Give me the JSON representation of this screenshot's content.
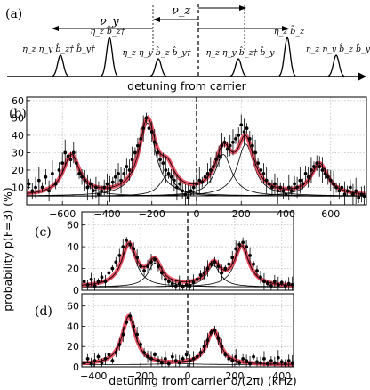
{
  "panel_labels": {
    "a": "(a)",
    "b": "(b)",
    "c": "(c)",
    "d": "(d)"
  },
  "schematic": {
    "axis_label": "detuning from carrier",
    "nu_y": "ν_y",
    "nu_z": "ν_z",
    "peaks": [
      {
        "label": "η_z η_y b̂_z† b̂_y†",
        "pos": -775
      },
      {
        "label": "η_z b̂_z†",
        "pos": -500
      },
      {
        "label": "η_z η_y b̂_z b̂_y†",
        "pos": -225
      },
      {
        "label": "η_z η_y b̂_z† b̂_y",
        "pos": 225
      },
      {
        "label": "η_z b̂_z",
        "pos": 500
      },
      {
        "label": "η_z η_y b̂_z b̂_y",
        "pos": 775
      }
    ],
    "colors": {
      "fit": "#e8384f",
      "ink": "#000000"
    }
  },
  "chart_data": [
    {
      "id": "b",
      "type": "scatter",
      "xlim": [
        -760,
        760
      ],
      "ylim": [
        0,
        62
      ],
      "xticks": [
        -600,
        -400,
        -200,
        0,
        200,
        400,
        600
      ],
      "yticks": [
        10,
        20,
        30,
        40,
        50,
        60
      ],
      "baseline": 5,
      "peaks": [
        {
          "center": -560,
          "height": 23,
          "width": 45
        },
        {
          "center": -220,
          "height": 42,
          "width": 45
        },
        {
          "center": -130,
          "height": 12,
          "width": 40
        },
        {
          "center": 120,
          "height": 24,
          "width": 45
        },
        {
          "center": 220,
          "height": 30,
          "width": 45
        },
        {
          "center": 550,
          "height": 18,
          "width": 45
        }
      ],
      "points": [
        [
          -750,
          12
        ],
        [
          -735,
          8
        ],
        [
          -720,
          10
        ],
        [
          -705,
          14
        ],
        [
          -690,
          10
        ],
        [
          -675,
          16
        ],
        [
          -660,
          8
        ],
        [
          -645,
          18
        ],
        [
          -630,
          12
        ],
        [
          -615,
          20
        ],
        [
          -600,
          24
        ],
        [
          -588,
          30
        ],
        [
          -575,
          28
        ],
        [
          -563,
          26
        ],
        [
          -550,
          30
        ],
        [
          -538,
          24
        ],
        [
          -525,
          18
        ],
        [
          -513,
          16
        ],
        [
          -500,
          14
        ],
        [
          -488,
          10
        ],
        [
          -475,
          12
        ],
        [
          -463,
          8
        ],
        [
          -450,
          10
        ],
        [
          -438,
          6
        ],
        [
          -425,
          8
        ],
        [
          -413,
          10
        ],
        [
          -400,
          12
        ],
        [
          -388,
          9
        ],
        [
          -375,
          13
        ],
        [
          -363,
          16
        ],
        [
          -350,
          18
        ],
        [
          -338,
          14
        ],
        [
          -325,
          18
        ],
        [
          -313,
          22
        ],
        [
          -300,
          20
        ],
        [
          -288,
          26
        ],
        [
          -275,
          30
        ],
        [
          -263,
          34
        ],
        [
          -250,
          38
        ],
        [
          -238,
          44
        ],
        [
          -225,
          50
        ],
        [
          -213,
          44
        ],
        [
          -200,
          42
        ],
        [
          -188,
          36
        ],
        [
          -175,
          30
        ],
        [
          -163,
          26
        ],
        [
          -150,
          24
        ],
        [
          -138,
          20
        ],
        [
          -125,
          18
        ],
        [
          -113,
          16
        ],
        [
          -100,
          14
        ],
        [
          -88,
          10
        ],
        [
          -75,
          12
        ],
        [
          -63,
          8
        ],
        [
          -50,
          6
        ],
        [
          -38,
          4
        ],
        [
          -25,
          8
        ],
        [
          -13,
          10
        ],
        [
          0,
          12
        ],
        [
          13,
          14
        ],
        [
          25,
          13
        ],
        [
          38,
          16
        ],
        [
          50,
          18
        ],
        [
          63,
          20
        ],
        [
          75,
          22
        ],
        [
          88,
          26
        ],
        [
          100,
          28
        ],
        [
          113,
          34
        ],
        [
          125,
          36
        ],
        [
          138,
          32
        ],
        [
          150,
          34
        ],
        [
          163,
          36
        ],
        [
          175,
          38
        ],
        [
          188,
          40
        ],
        [
          200,
          46
        ],
        [
          213,
          42
        ],
        [
          225,
          44
        ],
        [
          238,
          38
        ],
        [
          250,
          34
        ],
        [
          263,
          30
        ],
        [
          275,
          24
        ],
        [
          288,
          20
        ],
        [
          300,
          18
        ],
        [
          313,
          14
        ],
        [
          325,
          12
        ],
        [
          338,
          10
        ],
        [
          350,
          12
        ],
        [
          363,
          8
        ],
        [
          375,
          10
        ],
        [
          388,
          8
        ],
        [
          400,
          6
        ],
        [
          413,
          10
        ],
        [
          425,
          8
        ],
        [
          438,
          12
        ],
        [
          450,
          10
        ],
        [
          463,
          14
        ],
        [
          475,
          12
        ],
        [
          488,
          18
        ],
        [
          500,
          16
        ],
        [
          513,
          20
        ],
        [
          525,
          22
        ],
        [
          538,
          24
        ],
        [
          550,
          22
        ],
        [
          563,
          20
        ],
        [
          575,
          18
        ],
        [
          588,
          16
        ],
        [
          600,
          14
        ],
        [
          613,
          12
        ],
        [
          625,
          10
        ],
        [
          638,
          8
        ],
        [
          650,
          10
        ],
        [
          663,
          6
        ],
        [
          675,
          8
        ],
        [
          688,
          10
        ],
        [
          700,
          6
        ],
        [
          713,
          8
        ],
        [
          725,
          4
        ],
        [
          738,
          6
        ],
        [
          750,
          5
        ]
      ]
    },
    {
      "id": "c",
      "type": "scatter",
      "xlim": [
        -450,
        450
      ],
      "ylim": [
        0,
        72
      ],
      "xticks": [],
      "yticks": [
        0,
        20,
        40,
        60
      ],
      "baseline": 3,
      "peaks": [
        {
          "center": -250,
          "height": 38,
          "width": 38
        },
        {
          "center": -140,
          "height": 22,
          "width": 35
        },
        {
          "center": 110,
          "height": 20,
          "width": 35
        },
        {
          "center": 230,
          "height": 36,
          "width": 38
        }
      ],
      "points": [
        [
          -440,
          8
        ],
        [
          -425,
          5
        ],
        [
          -410,
          10
        ],
        [
          -395,
          4
        ],
        [
          -380,
          8
        ],
        [
          -365,
          12
        ],
        [
          -350,
          8
        ],
        [
          -335,
          16
        ],
        [
          -320,
          20
        ],
        [
          -305,
          26
        ],
        [
          -290,
          32
        ],
        [
          -275,
          40
        ],
        [
          -260,
          46
        ],
        [
          -245,
          42
        ],
        [
          -230,
          38
        ],
        [
          -215,
          30
        ],
        [
          -200,
          22
        ],
        [
          -185,
          18
        ],
        [
          -170,
          22
        ],
        [
          -155,
          26
        ],
        [
          -140,
          28
        ],
        [
          -125,
          22
        ],
        [
          -110,
          16
        ],
        [
          -95,
          10
        ],
        [
          -80,
          8
        ],
        [
          -65,
          6
        ],
        [
          -50,
          4
        ],
        [
          -35,
          6
        ],
        [
          -20,
          3
        ],
        [
          -5,
          5
        ],
        [
          10,
          4
        ],
        [
          25,
          7
        ],
        [
          40,
          10
        ],
        [
          55,
          14
        ],
        [
          70,
          16
        ],
        [
          85,
          20
        ],
        [
          100,
          24
        ],
        [
          115,
          26
        ],
        [
          130,
          22
        ],
        [
          145,
          16
        ],
        [
          160,
          20
        ],
        [
          175,
          24
        ],
        [
          190,
          30
        ],
        [
          205,
          38
        ],
        [
          220,
          42
        ],
        [
          235,
          44
        ],
        [
          250,
          40
        ],
        [
          265,
          32
        ],
        [
          280,
          24
        ],
        [
          295,
          18
        ],
        [
          310,
          12
        ],
        [
          325,
          8
        ],
        [
          340,
          6
        ],
        [
          355,
          4
        ],
        [
          370,
          8
        ],
        [
          385,
          5
        ],
        [
          400,
          7
        ],
        [
          415,
          4
        ],
        [
          430,
          6
        ],
        [
          445,
          5
        ]
      ]
    },
    {
      "id": "d",
      "type": "scatter",
      "xlabel": "detuning from carrier δ/(2π) (kHz)",
      "ylabel": "probability p(F=3) (%)",
      "xlim": [
        -450,
        450
      ],
      "ylim": [
        0,
        72
      ],
      "xticks": [
        -400,
        -200,
        0,
        200,
        400
      ],
      "yticks": [
        0,
        20,
        40,
        60
      ],
      "baseline": 2,
      "peaks": [
        {
          "center": -250,
          "height": 48,
          "width": 35
        },
        {
          "center": 110,
          "height": 34,
          "width": 35
        }
      ],
      "points": [
        [
          -440,
          4
        ],
        [
          -425,
          8
        ],
        [
          -410,
          3
        ],
        [
          -395,
          6
        ],
        [
          -380,
          10
        ],
        [
          -365,
          4
        ],
        [
          -350,
          8
        ],
        [
          -335,
          12
        ],
        [
          -320,
          6
        ],
        [
          -305,
          14
        ],
        [
          -290,
          22
        ],
        [
          -275,
          32
        ],
        [
          -260,
          44
        ],
        [
          -245,
          50
        ],
        [
          -230,
          40
        ],
        [
          -215,
          32
        ],
        [
          -200,
          22
        ],
        [
          -185,
          14
        ],
        [
          -170,
          10
        ],
        [
          -155,
          8
        ],
        [
          -140,
          12
        ],
        [
          -125,
          6
        ],
        [
          -110,
          4
        ],
        [
          -95,
          8
        ],
        [
          -80,
          3
        ],
        [
          -65,
          10
        ],
        [
          -50,
          6
        ],
        [
          -35,
          4
        ],
        [
          -20,
          8
        ],
        [
          -5,
          12
        ],
        [
          10,
          6
        ],
        [
          25,
          8
        ],
        [
          40,
          10
        ],
        [
          55,
          14
        ],
        [
          70,
          20
        ],
        [
          85,
          26
        ],
        [
          100,
          34
        ],
        [
          115,
          36
        ],
        [
          130,
          28
        ],
        [
          145,
          20
        ],
        [
          160,
          12
        ],
        [
          175,
          8
        ],
        [
          190,
          6
        ],
        [
          205,
          10
        ],
        [
          220,
          4
        ],
        [
          235,
          8
        ],
        [
          250,
          6
        ],
        [
          265,
          3
        ],
        [
          280,
          10
        ],
        [
          295,
          5
        ],
        [
          310,
          4
        ],
        [
          325,
          8
        ],
        [
          340,
          3
        ],
        [
          355,
          6
        ],
        [
          370,
          4
        ],
        [
          385,
          9
        ],
        [
          400,
          5
        ],
        [
          415,
          3
        ],
        [
          430,
          6
        ],
        [
          445,
          4
        ]
      ]
    }
  ]
}
